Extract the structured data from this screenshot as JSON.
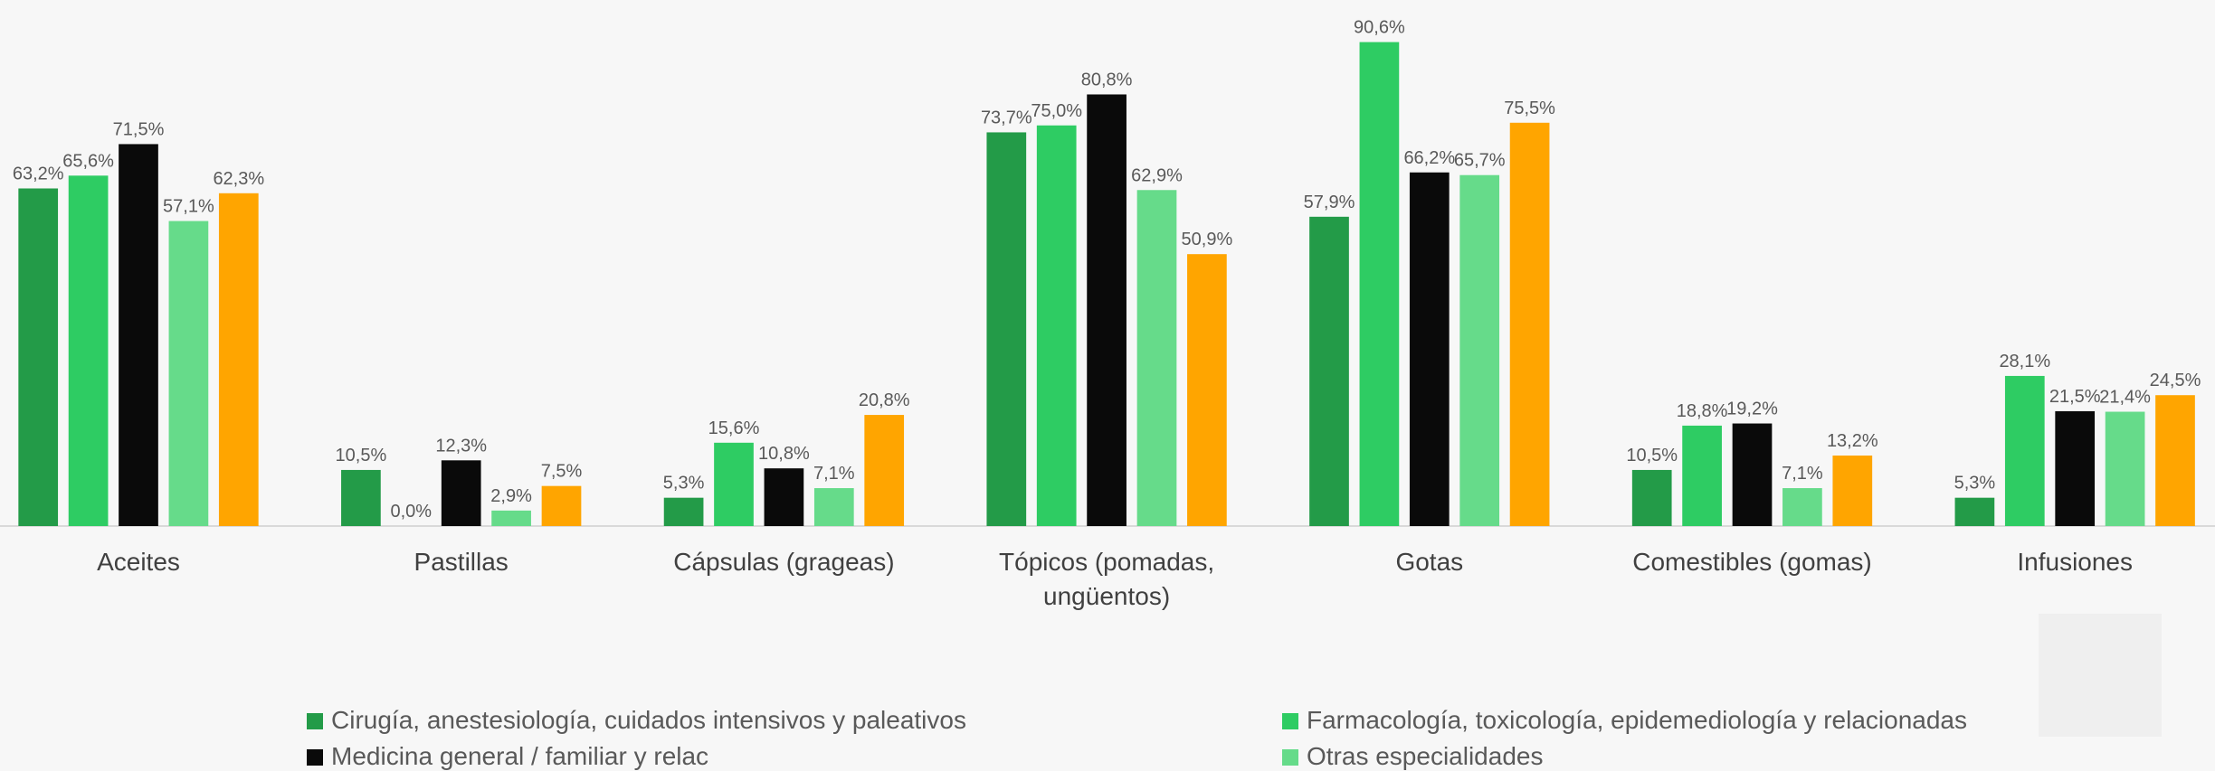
{
  "chart_data": {
    "type": "bar",
    "categories": [
      "Aceites",
      "Pastillas",
      "Cápsulas (grageas)",
      "Tópicos (pomadas, ungüentos)",
      "Gotas",
      "Comestibles (gomas)",
      "Infusiones"
    ],
    "series": [
      {
        "name": "Cirugía, anestesiología, cuidados intensivos y paleativos",
        "color": "#239b48",
        "values": [
          63.2,
          10.5,
          5.3,
          73.7,
          57.9,
          10.5,
          5.3
        ],
        "value_labels": [
          "63,2%",
          "10,5%",
          "5,3%",
          "73,7%",
          "57,9%",
          "10,5%",
          "5,3%"
        ]
      },
      {
        "name": "Farmacología, toxicología, epidemediología y relacionadas",
        "color": "#2ecc63",
        "values": [
          65.6,
          0.0,
          15.6,
          75.0,
          90.6,
          18.8,
          28.1
        ],
        "value_labels": [
          "65,6%",
          "0,0%",
          "15,6%",
          "75,0%",
          "90,6%",
          "18,8%",
          "28,1%"
        ]
      },
      {
        "name": "Medicina general / familiar y relac",
        "color": "#0a0a0a",
        "values": [
          71.5,
          12.3,
          10.8,
          80.8,
          66.2,
          19.2,
          21.5
        ],
        "value_labels": [
          "71,5%",
          "12,3%",
          "10,8%",
          "80,8%",
          "66,2%",
          "19,2%",
          "21,5%"
        ]
      },
      {
        "name": "Otras especialidades",
        "color": "#66db8a",
        "values": [
          57.1,
          2.9,
          7.1,
          62.9,
          65.7,
          7.1,
          21.4
        ],
        "value_labels": [
          "57,1%",
          "2,9%",
          "7,1%",
          "62,9%",
          "65,7%",
          "7,1%",
          "21,4%"
        ]
      },
      {
        "name": null,
        "color": "#ffa500",
        "values": [
          62.3,
          7.5,
          20.8,
          50.9,
          75.5,
          13.2,
          24.5
        ],
        "value_labels": [
          "62,3%",
          "7,5%",
          "20,8%",
          "50,9%",
          "75,5%",
          "13,2%",
          "24,5%"
        ]
      }
    ],
    "ylim": [
      0,
      100
    ]
  }
}
